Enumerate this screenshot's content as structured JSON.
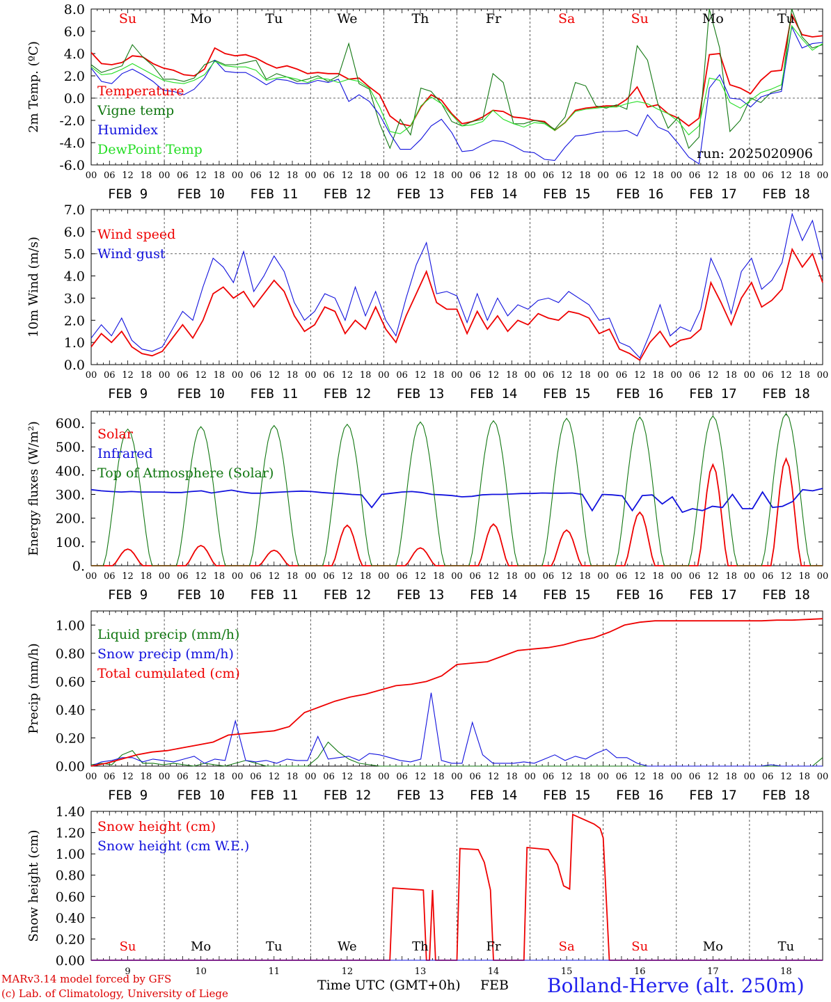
{
  "colors": {
    "red": "#ee0000",
    "green": "#117711",
    "blue": "#1111dd",
    "lightgreen": "#22dd22",
    "grid": "#333333",
    "weekend": "#ee0000"
  },
  "days": {
    "weekdays": [
      "Su",
      "Mo",
      "Tu",
      "We",
      "Th",
      "Fr",
      "Sa",
      "Su",
      "Mo",
      "Tu"
    ],
    "weekend_flags": [
      true,
      false,
      false,
      false,
      false,
      false,
      true,
      true,
      false,
      false
    ],
    "dates": [
      "FEB  9",
      "FEB 10",
      "FEB 11",
      "FEB 12",
      "FEB 13",
      "FEB 14",
      "FEB 15",
      "FEB 16",
      "FEB 17",
      "FEB 18"
    ],
    "day_numbers": [
      "9",
      "10",
      "11",
      "12",
      "13",
      "14",
      "15",
      "16",
      "17",
      "18"
    ],
    "hour_ticks": [
      "00",
      "06",
      "12",
      "18"
    ],
    "final_tick": "00"
  },
  "footer": {
    "credit_line1": "MARv3.14 model forced by GFS",
    "credit_line2": "(c) Lab. of Climatology, University of Liege",
    "time_label": "Time UTC (GMT+0h)",
    "month_label": "FEB",
    "station": "Bolland-Herve (alt. 250m)"
  },
  "chart_data": [
    {
      "type": "line",
      "ylabel": "2m Temp. (ºC)",
      "ylim": [
        -6,
        8
      ],
      "yticks": [
        "8.0",
        "6.0",
        "4.0",
        "2.0",
        "0.0",
        "-2.0",
        "-4.0",
        "-6.0"
      ],
      "ytick_values": [
        8,
        6,
        4,
        2,
        0,
        -2,
        -4,
        -6
      ],
      "ref_line": 0,
      "x_unit": "hours since FEB 9 00 UTC",
      "annotation": "run: 2025020906",
      "series": [
        {
          "name": "Temperature",
          "color": "red",
          "values": [
            4.1,
            3.1,
            3.0,
            3.2,
            3.8,
            3.7,
            3.1,
            2.7,
            2.5,
            2.1,
            2.0,
            2.6,
            4.5,
            4.0,
            3.8,
            3.9,
            3.6,
            3.1,
            2.7,
            2.9,
            2.6,
            2.2,
            2.3,
            2.2,
            2.2,
            1.7,
            1.8,
            1.0,
            0.3,
            -1.6,
            -2.3,
            -2.5,
            -0.8,
            0.3,
            -0.2,
            -1.4,
            -2.3,
            -2.1,
            -1.7,
            -1.1,
            -1.2,
            -1.7,
            -1.8,
            -2.0,
            -2.1,
            -2.9,
            -2.2,
            -1.1,
            -0.9,
            -0.8,
            -0.7,
            -0.7,
            -0.1,
            1.0,
            -0.8,
            -0.6,
            -1.4,
            -1.8,
            -2.5,
            -1.8,
            3.9,
            4.0,
            1.2,
            0.9,
            0.4,
            1.6,
            2.4,
            2.5,
            7.5,
            5.7,
            5.5,
            5.6
          ]
        },
        {
          "name": "Vigne temp",
          "color": "green",
          "values": [
            3.0,
            2.3,
            2.6,
            2.9,
            4.8,
            3.7,
            2.9,
            1.7,
            1.7,
            1.5,
            1.8,
            3.0,
            3.4,
            3.0,
            3.0,
            3.2,
            3.4,
            1.7,
            2.2,
            1.9,
            1.5,
            1.7,
            2.0,
            1.5,
            2.0,
            4.9,
            1.3,
            0.8,
            -2.3,
            -4.5,
            -1.9,
            -3.3,
            0.9,
            0.6,
            -0.5,
            -2.1,
            -2.5,
            -2.1,
            -1.9,
            2.2,
            1.4,
            -2.3,
            -2.3,
            -2.0,
            -2.2,
            -2.8,
            -1.7,
            1.4,
            1.1,
            -0.7,
            -0.9,
            -0.6,
            -1.0,
            4.7,
            3.4,
            -0.5,
            -2.7,
            -1.7,
            -4.5,
            -3.5,
            8.0,
            4.5,
            -3.0,
            -2.0,
            0.0,
            -0.4,
            0.5,
            0.8,
            8.2,
            5.5,
            4.5,
            4.8
          ]
        },
        {
          "name": "Humidex",
          "color": "blue",
          "values": [
            2.7,
            1.5,
            1.3,
            2.2,
            2.6,
            2.1,
            1.5,
            0.7,
            0.6,
            0.3,
            0.8,
            1.8,
            3.4,
            2.4,
            2.3,
            2.3,
            1.8,
            1.2,
            1.7,
            1.6,
            1.3,
            1.3,
            1.6,
            1.4,
            1.7,
            -0.3,
            0.3,
            -0.3,
            -1.5,
            -3.2,
            -4.6,
            -4.6,
            -3.7,
            -2.5,
            -1.9,
            -3.1,
            -4.8,
            -4.7,
            -4.2,
            -3.8,
            -3.9,
            -4.3,
            -4.8,
            -4.9,
            -5.5,
            -5.6,
            -4.4,
            -3.4,
            -3.3,
            -3.1,
            -3.0,
            -3.0,
            -2.9,
            -3.4,
            -1.5,
            -2.6,
            -3.0,
            -4.1,
            -5.3,
            -5.9,
            0.9,
            2.1,
            0.0,
            -0.1,
            -0.8,
            0.1,
            0.4,
            0.6,
            6.4,
            4.5,
            4.9,
            5.0
          ]
        },
        {
          "name": "DewPoint Temp",
          "color": "lightgreen",
          "values": [
            2.8,
            2.1,
            2.2,
            2.6,
            3.1,
            2.6,
            2.1,
            1.6,
            1.4,
            1.3,
            1.6,
            2.1,
            3.3,
            2.9,
            2.8,
            2.8,
            2.5,
            1.6,
            1.8,
            1.9,
            1.7,
            1.4,
            1.8,
            1.7,
            1.4,
            1.7,
            1.5,
            0.9,
            -0.8,
            -3.0,
            -3.2,
            -2.5,
            -0.7,
            0.1,
            -0.5,
            -1.5,
            -2.5,
            -2.4,
            -2.1,
            -1.1,
            -1.9,
            -2.3,
            -2.6,
            -2.2,
            -2.3,
            -2.9,
            -2.2,
            -1.2,
            -1.0,
            -0.9,
            -0.8,
            -0.8,
            -0.5,
            -0.3,
            -0.5,
            -1.0,
            -1.4,
            -2.1,
            -3.3,
            -2.5,
            1.8,
            1.6,
            -0.4,
            -0.9,
            -0.2,
            0.5,
            0.8,
            1.2,
            6.5,
            5.3,
            4.3,
            4.9
          ]
        }
      ]
    },
    {
      "type": "line",
      "ylabel": "10m Wind (m/s)",
      "ylim": [
        0,
        7
      ],
      "yticks": [
        "7.0",
        "6.0",
        "5.0",
        "4.0",
        "3.0",
        "2.0",
        "1.0",
        "0.0"
      ],
      "ytick_values": [
        7,
        6,
        5,
        4,
        3,
        2,
        1,
        0
      ],
      "ref_line": 5,
      "x_unit": "hours since FEB 9 00 UTC",
      "series": [
        {
          "name": "Wind speed",
          "color": "red",
          "values": [
            0.8,
            1.4,
            1.0,
            1.5,
            0.8,
            0.5,
            0.4,
            0.6,
            1.2,
            1.8,
            1.2,
            2.0,
            3.2,
            3.5,
            3.0,
            3.3,
            2.6,
            3.2,
            3.8,
            3.3,
            2.2,
            1.5,
            1.8,
            2.6,
            2.4,
            1.4,
            2.0,
            1.6,
            2.6,
            1.6,
            1.0,
            2.2,
            3.2,
            4.2,
            2.8,
            2.5,
            2.5,
            1.4,
            2.4,
            1.6,
            2.2,
            1.5,
            2.0,
            1.8,
            2.3,
            2.1,
            2.0,
            2.4,
            2.3,
            2.1,
            1.4,
            1.6,
            0.7,
            0.5,
            0.2,
            1.0,
            1.5,
            0.8,
            1.1,
            1.2,
            1.6,
            3.7,
            2.8,
            1.8,
            3.0,
            3.7,
            2.6,
            2.9,
            3.4,
            5.2,
            4.4,
            5.0,
            3.7
          ]
        },
        {
          "name": "Wind gust",
          "color": "blue",
          "values": [
            1.2,
            1.8,
            1.3,
            2.1,
            1.1,
            0.7,
            0.6,
            0.8,
            1.6,
            2.4,
            2.0,
            3.5,
            4.8,
            4.4,
            3.7,
            5.1,
            3.3,
            4.0,
            4.9,
            4.2,
            2.8,
            2.0,
            2.4,
            3.2,
            3.0,
            2.0,
            3.5,
            2.2,
            3.3,
            2.0,
            1.3,
            3.0,
            4.5,
            5.5,
            3.2,
            3.3,
            3.1,
            1.9,
            3.2,
            2.0,
            3.0,
            2.2,
            2.7,
            2.5,
            2.9,
            3.0,
            2.8,
            3.3,
            3.0,
            2.7,
            2.0,
            2.1,
            1.0,
            0.8,
            0.3,
            1.4,
            2.7,
            1.3,
            1.7,
            1.5,
            2.5,
            4.8,
            3.8,
            2.3,
            4.2,
            4.8,
            3.4,
            3.8,
            4.6,
            6.8,
            5.6,
            6.5,
            4.7
          ]
        }
      ]
    },
    {
      "type": "line",
      "ylabel": "Energy fluxes (W/m²)",
      "ylim": [
        0,
        650
      ],
      "yticks": [
        "600.",
        "500.",
        "400.",
        "300.",
        "200.",
        "100.",
        "0."
      ],
      "ytick_values": [
        600,
        500,
        400,
        300,
        200,
        100,
        0
      ],
      "x_unit": "hours since FEB 9 00 UTC",
      "series": [
        {
          "name": "Solar",
          "color": "red",
          "peaks": [
            70,
            85,
            65,
            170,
            75,
            175,
            150,
            225,
            425,
            450
          ]
        },
        {
          "name": "Infrared",
          "color": "blue",
          "values": [
            320,
            315,
            312,
            310,
            312,
            310,
            310,
            310,
            308,
            308,
            312,
            315,
            306,
            312,
            318,
            310,
            305,
            305,
            308,
            310,
            312,
            314,
            312,
            308,
            305,
            304,
            300,
            298,
            245,
            300,
            305,
            310,
            312,
            308,
            300,
            298,
            295,
            290,
            292,
            298,
            300,
            300,
            302,
            304,
            304,
            306,
            305,
            305,
            306,
            300,
            232,
            300,
            298,
            294,
            232,
            295,
            298,
            260,
            290,
            225,
            240,
            232,
            250,
            245,
            300,
            240,
            240,
            310,
            245,
            250,
            270,
            320,
            315,
            325
          ]
        },
        {
          "name": "Top of Atmosphere (Solar)",
          "color": "green",
          "peaks": [
            575,
            585,
            590,
            595,
            605,
            610,
            620,
            625,
            630,
            640
          ]
        }
      ]
    },
    {
      "type": "line",
      "ylabel": "Precip (mm/h)",
      "ylim": [
        0,
        1.1
      ],
      "yticks": [
        "1.00",
        "0.80",
        "0.60",
        "0.40",
        "0.20",
        "0.00"
      ],
      "ytick_values": [
        1.0,
        0.8,
        0.6,
        0.4,
        0.2,
        0.0
      ],
      "x_unit": "hours since FEB 9 00 UTC",
      "series": [
        {
          "name": "Liquid precip (mm/h)",
          "color": "green",
          "values": [
            0.01,
            0.02,
            0.01,
            0.08,
            0.11,
            0.02,
            0.02,
            0.01,
            0.02,
            0.01,
            0.0,
            0.02,
            0.01,
            0.0,
            0.02,
            0.04,
            0.02,
            0.0,
            0.0,
            0.0,
            0.0,
            0.0,
            0.06,
            0.17,
            0.1,
            0.05,
            0.02,
            0.01,
            0.0,
            0.0,
            0.0,
            0.0,
            0.0,
            0.0,
            0.0,
            0.0,
            0.0,
            0.0,
            0.0,
            0.0,
            0.0,
            0.0,
            0.0,
            0.0,
            0.0,
            0.0,
            0.0,
            0.0,
            0.0,
            0.0,
            0.0,
            0.0,
            0.0,
            0.0,
            0.0,
            0.0,
            0.0,
            0.0,
            0.0,
            0.0,
            0.0,
            0.0,
            0.0,
            0.0,
            0.0,
            0.0,
            0.0,
            0.0,
            0.0,
            0.0,
            0.0,
            0.06
          ]
        },
        {
          "name": "Snow precip (mm/h)",
          "color": "blue",
          "values": [
            0.0,
            0.03,
            0.04,
            0.06,
            0.06,
            0.03,
            0.05,
            0.04,
            0.03,
            0.05,
            0.07,
            0.02,
            0.05,
            0.04,
            0.32,
            0.04,
            0.03,
            0.04,
            0.02,
            0.05,
            0.04,
            0.04,
            0.21,
            0.05,
            0.06,
            0.07,
            0.04,
            0.09,
            0.08,
            0.06,
            0.04,
            0.03,
            0.05,
            0.52,
            0.04,
            0.02,
            0.02,
            0.31,
            0.08,
            0.02,
            0.02,
            0.02,
            0.03,
            0.02,
            0.05,
            0.08,
            0.04,
            0.07,
            0.05,
            0.09,
            0.12,
            0.06,
            0.06,
            0.02,
            0.0,
            0.0,
            0.0,
            0.0,
            0.0,
            0.0,
            0.0,
            0.0,
            0.0,
            0.0,
            0.0,
            0.0,
            0.01,
            0.0,
            0.0,
            0.0,
            0.0,
            0.0
          ]
        },
        {
          "name": "Total cumulated (cm)",
          "color": "red",
          "values": [
            0.0,
            0.02,
            0.05,
            0.08,
            0.1,
            0.11,
            0.13,
            0.15,
            0.17,
            0.22,
            0.23,
            0.24,
            0.25,
            0.28,
            0.38,
            0.42,
            0.46,
            0.49,
            0.51,
            0.54,
            0.57,
            0.58,
            0.6,
            0.64,
            0.72,
            0.73,
            0.74,
            0.78,
            0.82,
            0.83,
            0.84,
            0.86,
            0.89,
            0.91,
            0.95,
            1.0,
            1.02,
            1.03,
            1.03,
            1.03,
            1.03,
            1.03,
            1.03,
            1.03,
            1.03,
            1.035,
            1.035,
            1.04,
            1.045
          ]
        }
      ]
    },
    {
      "type": "line",
      "ylabel": "Snow height (cm)",
      "ylim": [
        0,
        1.4
      ],
      "yticks": [
        "1.40",
        "1.20",
        "1.00",
        "0.80",
        "0.60",
        "0.40",
        "0.20",
        "0.00"
      ],
      "ytick_values": [
        1.4,
        1.2,
        1.0,
        0.8,
        0.6,
        0.4,
        0.2,
        0.0
      ],
      "x_unit": "hours since FEB 9 00 UTC",
      "series": [
        {
          "name": "Snow height (cm)",
          "color": "red",
          "points": [
            [
              0,
              0
            ],
            [
              98,
              0
            ],
            [
              99,
              0.68
            ],
            [
              109,
              0.66
            ],
            [
              110,
              0
            ],
            [
              111,
              0
            ],
            [
              112,
              0.66
            ],
            [
              113,
              0
            ],
            [
              120,
              0
            ],
            [
              121,
              1.05
            ],
            [
              127,
              1.04
            ],
            [
              129,
              0.92
            ],
            [
              131,
              0.66
            ],
            [
              132,
              0
            ],
            [
              142,
              0
            ],
            [
              143,
              1.06
            ],
            [
              150,
              1.04
            ],
            [
              153,
              0.9
            ],
            [
              155,
              0.7
            ],
            [
              157,
              0.67
            ],
            [
              158,
              1.37
            ],
            [
              165,
              1.28
            ],
            [
              167,
              1.24
            ],
            [
              168,
              1.15
            ],
            [
              170,
              0
            ],
            [
              240,
              0
            ]
          ]
        },
        {
          "name": "Snow height (cm W.E.)",
          "color": "blue",
          "points": [
            [
              0,
              0
            ],
            [
              240,
              0
            ]
          ]
        }
      ]
    }
  ]
}
